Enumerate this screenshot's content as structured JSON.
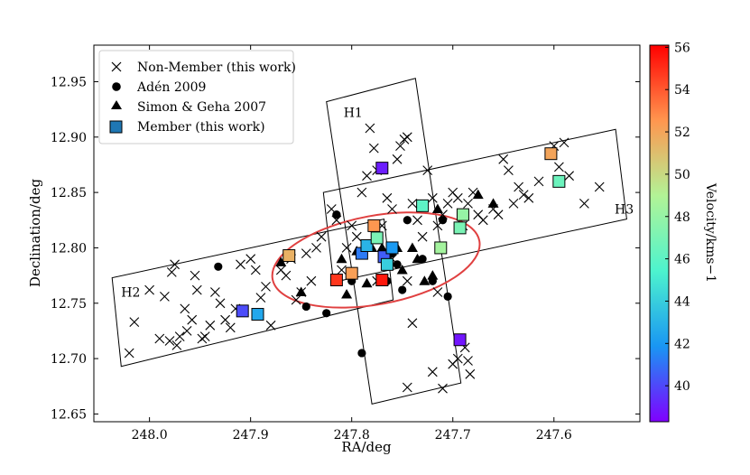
{
  "chart_data": {
    "type": "scatter",
    "title": "",
    "xlabel": "RA/deg",
    "ylabel": "Declination/deg",
    "xlim": [
      248.055,
      247.515
    ],
    "ylim": [
      12.643,
      12.983
    ],
    "x_ticks": [
      248.0,
      247.9,
      247.8,
      247.7,
      247.6
    ],
    "x_tick_labels": [
      "248.0",
      "247.9",
      "247.8",
      "247.7",
      "247.6"
    ],
    "y_ticks": [
      12.65,
      12.7,
      12.75,
      12.8,
      12.85,
      12.9,
      12.95
    ],
    "y_tick_labels": [
      "12.65",
      "12.70",
      "12.75",
      "12.80",
      "12.85",
      "12.90",
      "12.95"
    ],
    "colorbar": {
      "label": "Velocity/kms−1",
      "range": [
        38.3,
        56.1
      ],
      "ticks": [
        40,
        42,
        44,
        46,
        48,
        50,
        52,
        54,
        56
      ],
      "tick_labels": [
        "40",
        "42",
        "44",
        "46",
        "48",
        "50",
        "52",
        "54",
        "56"
      ],
      "colormap": "rainbow",
      "colors": [
        "#8000ff",
        "#1996f3",
        "#4df3ce",
        "#b2f396",
        "#ff964f",
        "#ff0000"
      ]
    },
    "legend": {
      "location": "top-left",
      "entries": [
        {
          "label": "Non-Member (this work)",
          "marker": "x"
        },
        {
          "label": "Adén 2009",
          "marker": "circle"
        },
        {
          "label": "Simon & Geha 2007",
          "marker": "triangle"
        },
        {
          "label": "Member (this work)",
          "marker": "square"
        }
      ]
    },
    "regions": [
      {
        "name": "H1",
        "corners": [
          [
            247.825,
            12.932
          ],
          [
            247.737,
            12.953
          ],
          [
            247.692,
            12.678
          ],
          [
            247.78,
            12.659
          ]
        ],
        "label_at": [
          247.808,
          12.918
        ]
      },
      {
        "name": "H2",
        "corners": [
          [
            248.037,
            12.773
          ],
          [
            248.028,
            12.693
          ],
          [
            247.759,
            12.753
          ],
          [
            247.768,
            12.826
          ]
        ],
        "label_at": [
          248.028,
          12.756
        ]
      },
      {
        "name": "H3",
        "corners": [
          [
            247.828,
            12.85
          ],
          [
            247.818,
            12.769
          ],
          [
            247.528,
            12.826
          ],
          [
            247.539,
            12.907
          ]
        ],
        "label_at": [
          247.54,
          12.831
        ]
      }
    ],
    "ellipse": {
      "center": [
        247.776,
        12.789
      ],
      "semi_axes_ra_dec": [
        0.104,
        0.04
      ],
      "orientation_deg": -10.5,
      "color": "#e04040"
    },
    "series": [
      {
        "name": "Non-Member (this work)",
        "marker": "x",
        "points": [
          [
            248.02,
            12.705
          ],
          [
            248.015,
            12.733
          ],
          [
            248.0,
            12.762
          ],
          [
            247.99,
            12.718
          ],
          [
            247.985,
            12.756
          ],
          [
            247.98,
            12.716
          ],
          [
            247.978,
            12.778
          ],
          [
            247.975,
            12.785
          ],
          [
            247.973,
            12.712
          ],
          [
            247.97,
            12.72
          ],
          [
            247.965,
            12.745
          ],
          [
            247.963,
            12.725
          ],
          [
            247.958,
            12.735
          ],
          [
            247.955,
            12.775
          ],
          [
            247.953,
            12.762
          ],
          [
            247.948,
            12.718
          ],
          [
            247.945,
            12.72
          ],
          [
            247.94,
            12.73
          ],
          [
            247.935,
            12.76
          ],
          [
            247.93,
            12.75
          ],
          [
            247.925,
            12.735
          ],
          [
            247.92,
            12.728
          ],
          [
            247.915,
            12.745
          ],
          [
            247.91,
            12.785
          ],
          [
            247.9,
            12.79
          ],
          [
            247.895,
            12.78
          ],
          [
            247.89,
            12.755
          ],
          [
            247.885,
            12.765
          ],
          [
            247.88,
            12.73
          ],
          [
            247.87,
            12.78
          ],
          [
            247.865,
            12.775
          ],
          [
            247.86,
            12.79
          ],
          [
            247.855,
            12.753
          ],
          [
            247.85,
            12.76
          ],
          [
            247.845,
            12.795
          ],
          [
            247.84,
            12.77
          ],
          [
            247.835,
            12.8
          ],
          [
            247.83,
            12.81
          ],
          [
            247.82,
            12.835
          ],
          [
            247.815,
            12.825
          ],
          [
            247.81,
            12.78
          ],
          [
            247.805,
            12.8
          ],
          [
            247.8,
            12.82
          ],
          [
            247.795,
            12.81
          ],
          [
            247.79,
            12.85
          ],
          [
            247.785,
            12.865
          ],
          [
            247.782,
            12.908
          ],
          [
            247.778,
            12.89
          ],
          [
            247.775,
            12.87
          ],
          [
            247.77,
            12.82
          ],
          [
            247.765,
            12.845
          ],
          [
            247.76,
            12.835
          ],
          [
            247.755,
            12.88
          ],
          [
            247.752,
            12.892
          ],
          [
            247.748,
            12.898
          ],
          [
            247.745,
            12.9
          ],
          [
            247.74,
            12.84
          ],
          [
            247.735,
            12.825
          ],
          [
            247.73,
            12.81
          ],
          [
            247.725,
            12.87
          ],
          [
            247.72,
            12.845
          ],
          [
            247.715,
            12.82
          ],
          [
            247.71,
            12.83
          ],
          [
            247.705,
            12.84
          ],
          [
            247.7,
            12.85
          ],
          [
            247.695,
            12.845
          ],
          [
            247.69,
            12.82
          ],
          [
            247.685,
            12.84
          ],
          [
            247.68,
            12.85
          ],
          [
            247.675,
            12.83
          ],
          [
            247.67,
            12.825
          ],
          [
            247.66,
            12.835
          ],
          [
            247.655,
            12.83
          ],
          [
            247.65,
            12.88
          ],
          [
            247.645,
            12.87
          ],
          [
            247.64,
            12.84
          ],
          [
            247.635,
            12.855
          ],
          [
            247.63,
            12.848
          ],
          [
            247.625,
            12.845
          ],
          [
            247.615,
            12.86
          ],
          [
            247.6,
            12.892
          ],
          [
            247.595,
            12.873
          ],
          [
            247.59,
            12.895
          ],
          [
            247.585,
            12.865
          ],
          [
            247.57,
            12.84
          ],
          [
            247.555,
            12.855
          ],
          [
            247.74,
            12.732
          ],
          [
            247.745,
            12.674
          ],
          [
            247.72,
            12.688
          ],
          [
            247.71,
            12.673
          ],
          [
            247.7,
            12.695
          ],
          [
            247.695,
            12.7
          ],
          [
            247.688,
            12.71
          ],
          [
            247.685,
            12.698
          ],
          [
            247.683,
            12.686
          ],
          [
            247.745,
            12.77
          ],
          [
            247.76,
            12.79
          ],
          [
            247.775,
            12.77
          ],
          [
            247.715,
            12.76
          ]
        ]
      },
      {
        "name": "Adén 2009",
        "marker": "circle",
        "points": [
          [
            247.932,
            12.783
          ],
          [
            247.845,
            12.747
          ],
          [
            247.825,
            12.741
          ],
          [
            247.815,
            12.83
          ],
          [
            247.8,
            12.77
          ],
          [
            247.79,
            12.705
          ],
          [
            247.76,
            12.795
          ],
          [
            247.755,
            12.785
          ],
          [
            247.75,
            12.762
          ],
          [
            247.745,
            12.825
          ],
          [
            247.73,
            12.79
          ],
          [
            247.72,
            12.77
          ],
          [
            247.71,
            12.825
          ],
          [
            247.705,
            12.756
          ],
          [
            247.765,
            12.77
          ]
        ]
      },
      {
        "name": "Simon & Geha 2007",
        "marker": "triangle",
        "points": [
          [
            247.87,
            12.787
          ],
          [
            247.85,
            12.76
          ],
          [
            247.81,
            12.79
          ],
          [
            247.805,
            12.758
          ],
          [
            247.795,
            12.797
          ],
          [
            247.79,
            12.795
          ],
          [
            247.785,
            12.768
          ],
          [
            247.78,
            12.8
          ],
          [
            247.77,
            12.8
          ],
          [
            247.765,
            12.785
          ],
          [
            247.755,
            12.8
          ],
          [
            247.75,
            12.78
          ],
          [
            247.74,
            12.8
          ],
          [
            247.735,
            12.79
          ],
          [
            247.728,
            12.77
          ],
          [
            247.72,
            12.775
          ],
          [
            247.715,
            12.835
          ],
          [
            247.675,
            12.848
          ],
          [
            247.66,
            12.84
          ]
        ]
      },
      {
        "name": "Member (this work)",
        "marker": "square",
        "colored_by": "velocity",
        "points": [
          [
            247.908,
            12.743,
            40.1
          ],
          [
            247.893,
            12.74,
            42.5
          ],
          [
            247.862,
            12.793,
            51.5
          ],
          [
            247.815,
            12.771,
            54.8
          ],
          [
            247.8,
            12.777,
            52.2
          ],
          [
            247.79,
            12.795,
            41.2
          ],
          [
            247.785,
            12.802,
            43.0
          ],
          [
            247.778,
            12.82,
            52.5
          ],
          [
            247.775,
            12.809,
            47.0
          ],
          [
            247.77,
            12.771,
            55.5
          ],
          [
            247.768,
            12.792,
            40.5
          ],
          [
            247.765,
            12.785,
            44.0
          ],
          [
            247.76,
            12.8,
            42.0
          ],
          [
            247.73,
            12.838,
            46.0
          ],
          [
            247.712,
            12.8,
            48.5
          ],
          [
            247.693,
            12.818,
            47.0
          ],
          [
            247.69,
            12.83,
            48.0
          ],
          [
            247.77,
            12.872,
            39.0
          ],
          [
            247.693,
            12.717,
            38.8
          ],
          [
            247.603,
            12.885,
            52.0
          ],
          [
            247.595,
            12.86,
            46.5
          ]
        ]
      }
    ]
  }
}
